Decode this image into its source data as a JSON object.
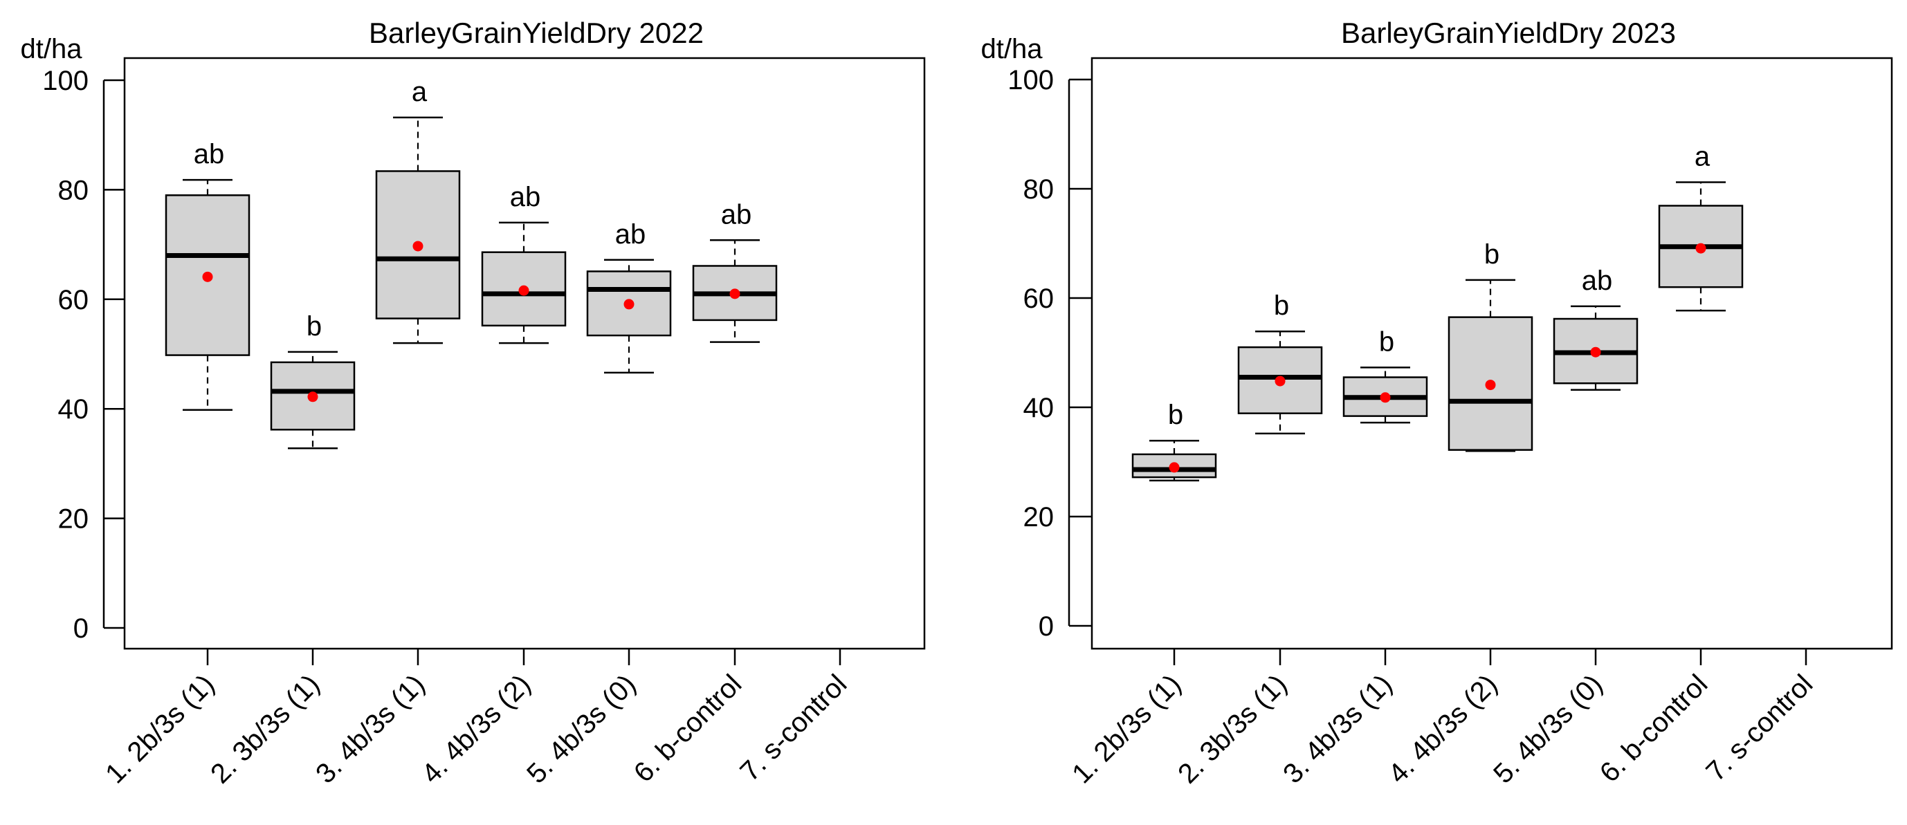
{
  "chart_data": [
    {
      "type": "box",
      "title": "BarleyGrainYieldDry 2022",
      "ylabel": "dt/ha",
      "ylim": [
        0,
        100
      ],
      "yticks": [
        0,
        20,
        40,
        60,
        80,
        100
      ],
      "categories": [
        "1. 2b/3s (1)",
        "2. 3b/3s (1)",
        "3. 4b/3s (1)",
        "4. 4b/3s (2)",
        "5. 4b/3s (0)",
        "6. b-control",
        "7. s-control"
      ],
      "boxes": [
        {
          "min": 39.8,
          "q1": 49.8,
          "median": 68.0,
          "q3": 79.0,
          "max": 81.8,
          "mean": 64.1,
          "letter": "ab"
        },
        {
          "min": 32.8,
          "q1": 36.2,
          "median": 43.2,
          "q3": 48.5,
          "max": 50.4,
          "mean": 42.2,
          "letter": "b"
        },
        {
          "min": 52.0,
          "q1": 56.5,
          "median": 67.4,
          "q3": 83.4,
          "max": 93.2,
          "mean": 69.7,
          "letter": "a"
        },
        {
          "min": 52.0,
          "q1": 55.2,
          "median": 61.0,
          "q3": 68.6,
          "max": 74.0,
          "mean": 61.6,
          "letter": "ab"
        },
        {
          "min": 46.6,
          "q1": 53.4,
          "median": 61.8,
          "q3": 65.1,
          "max": 67.2,
          "mean": 59.1,
          "letter": "ab"
        },
        {
          "min": 52.2,
          "q1": 56.2,
          "median": 61.0,
          "q3": 66.1,
          "max": 70.8,
          "mean": 61.0,
          "letter": "ab"
        },
        null
      ]
    },
    {
      "type": "box",
      "title": "BarleyGrainYieldDry 2023",
      "ylabel": "dt/ha",
      "ylim": [
        0,
        100
      ],
      "yticks": [
        0,
        20,
        40,
        60,
        80,
        100
      ],
      "categories": [
        "1. 2b/3s (1)",
        "2. 3b/3s (1)",
        "3. 4b/3s (1)",
        "4. 4b/3s (2)",
        "5. 4b/3s (0)",
        "6. b-control",
        "7. s-control"
      ],
      "boxes": [
        {
          "min": 26.6,
          "q1": 27.2,
          "median": 28.6,
          "q3": 31.4,
          "max": 33.9,
          "mean": 29.0,
          "letter": "b"
        },
        {
          "min": 35.2,
          "q1": 38.9,
          "median": 45.5,
          "q3": 51.0,
          "max": 53.9,
          "mean": 44.8,
          "letter": "b"
        },
        {
          "min": 37.2,
          "q1": 38.4,
          "median": 41.8,
          "q3": 45.5,
          "max": 47.3,
          "mean": 41.8,
          "letter": "b"
        },
        {
          "min": 32.0,
          "q1": 32.2,
          "median": 41.1,
          "q3": 56.5,
          "max": 63.3,
          "mean": 44.1,
          "letter": "b"
        },
        {
          "min": 43.2,
          "q1": 44.4,
          "median": 50.0,
          "q3": 56.2,
          "max": 58.5,
          "mean": 50.1,
          "letter": "ab"
        },
        {
          "min": 57.7,
          "q1": 62.0,
          "median": 69.4,
          "q3": 76.9,
          "max": 81.2,
          "mean": 69.1,
          "letter": "a"
        },
        null
      ]
    }
  ]
}
